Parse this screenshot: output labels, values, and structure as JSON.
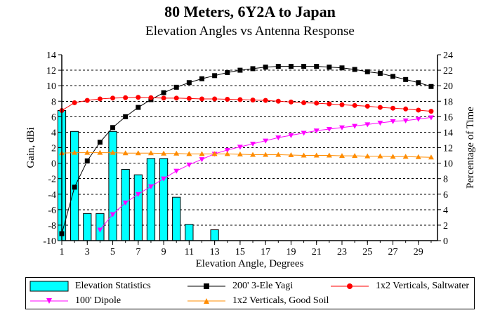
{
  "chart_data": {
    "type": "bar+line",
    "title": "80 Meters, 6Y2A to Japan",
    "subtitle": "Elevation Angles vs Antenna Response",
    "xlabel": "Elevation Angle, Degrees",
    "ylabel_left": "Gain, dBi",
    "ylabel_right": "Percentage of Time",
    "xlim": [
      1,
      30.5
    ],
    "ylim_left": [
      -10,
      14
    ],
    "ylim_right": [
      0,
      24
    ],
    "x_ticks": [
      "1",
      "3",
      "5",
      "7",
      "9",
      "11",
      "13",
      "15",
      "17",
      "19",
      "21",
      "23",
      "25",
      "27",
      "29"
    ],
    "y_ticks_left": [
      "-10",
      "-8",
      "-6",
      "-4",
      "-2",
      "0",
      "2",
      "4",
      "6",
      "8",
      "10",
      "12",
      "14"
    ],
    "y_ticks_right": [
      "0",
      "2",
      "4",
      "6",
      "8",
      "10",
      "12",
      "14",
      "16",
      "18",
      "20",
      "22",
      "24"
    ],
    "grid": "horizontal dashed",
    "bars": {
      "name": "Elevation Statistics",
      "axis": "right",
      "color": "#00FFFF",
      "x": [
        1,
        2,
        3,
        4,
        5,
        6,
        7,
        8,
        9,
        10,
        11,
        13
      ],
      "values": [
        16.8,
        14.1,
        3.5,
        3.5,
        14.1,
        9.2,
        8.5,
        10.6,
        10.6,
        5.6,
        2.1,
        1.4
      ]
    },
    "series": [
      {
        "name": "200' 3-Ele Yagi",
        "axis": "left",
        "color": "#000000",
        "marker": "square",
        "x": [
          1,
          2,
          3,
          4,
          5,
          6,
          7,
          8,
          9,
          10,
          11,
          12,
          13,
          14,
          15,
          16,
          17,
          18,
          19,
          20,
          21,
          22,
          23,
          24,
          25,
          26,
          27,
          28,
          29,
          30
        ],
        "values": [
          -9.1,
          -3.1,
          0.3,
          2.7,
          4.6,
          6.0,
          7.2,
          8.2,
          9.1,
          9.8,
          10.4,
          10.9,
          11.3,
          11.7,
          12.0,
          12.2,
          12.4,
          12.5,
          12.5,
          12.5,
          12.5,
          12.4,
          12.3,
          12.1,
          11.8,
          11.6,
          11.2,
          10.8,
          10.4,
          9.9
        ]
      },
      {
        "name": "1x2 Verticals, Saltwater",
        "axis": "left",
        "color": "#FF0000",
        "marker": "circle",
        "x": [
          1,
          2,
          3,
          4,
          5,
          6,
          7,
          8,
          9,
          10,
          11,
          12,
          13,
          14,
          15,
          16,
          17,
          18,
          19,
          20,
          21,
          22,
          23,
          24,
          25,
          26,
          27,
          28,
          29,
          30
        ],
        "values": [
          6.8,
          7.8,
          8.1,
          8.3,
          8.4,
          8.45,
          8.5,
          8.45,
          8.4,
          8.4,
          8.35,
          8.3,
          8.3,
          8.25,
          8.2,
          8.15,
          8.1,
          8.0,
          7.9,
          7.8,
          7.75,
          7.65,
          7.55,
          7.45,
          7.35,
          7.2,
          7.1,
          7.0,
          6.85,
          6.7
        ]
      },
      {
        "name": "100' Dipole",
        "axis": "left",
        "color": "#FF00FF",
        "marker": "triangle-down",
        "x": [
          4,
          5,
          6,
          7,
          8,
          9,
          10,
          11,
          12,
          13,
          14,
          15,
          16,
          17,
          18,
          19,
          20,
          21,
          22,
          23,
          24,
          25,
          26,
          27,
          28,
          29,
          30
        ],
        "values": [
          -8.6,
          -6.6,
          -5.1,
          -4.0,
          -3.0,
          -2.0,
          -1.0,
          -0.2,
          0.5,
          1.2,
          1.7,
          2.1,
          2.5,
          2.9,
          3.3,
          3.6,
          3.9,
          4.2,
          4.4,
          4.6,
          4.8,
          5.0,
          5.2,
          5.4,
          5.5,
          5.7,
          5.9
        ]
      },
      {
        "name": "1x2 Verticals, Good Soil",
        "axis": "left",
        "color": "#FF8C00",
        "marker": "triangle-up",
        "x": [
          1,
          2,
          3,
          4,
          5,
          6,
          7,
          8,
          9,
          10,
          11,
          12,
          13,
          14,
          15,
          16,
          17,
          18,
          19,
          20,
          21,
          22,
          23,
          24,
          25,
          26,
          27,
          28,
          29,
          30
        ],
        "values": [
          1.3,
          1.35,
          1.35,
          1.35,
          1.35,
          1.3,
          1.3,
          1.3,
          1.25,
          1.25,
          1.2,
          1.2,
          1.2,
          1.2,
          1.15,
          1.1,
          1.1,
          1.1,
          1.05,
          1.0,
          1.0,
          1.0,
          0.95,
          0.95,
          0.9,
          0.9,
          0.85,
          0.85,
          0.8,
          0.75
        ]
      }
    ],
    "legend": {
      "position": "bottom",
      "entries": [
        "Elevation Statistics",
        "200' 3-Ele Yagi",
        "1x2 Verticals, Saltwater",
        "100' Dipole",
        "1x2 Verticals, Good Soil"
      ]
    }
  }
}
